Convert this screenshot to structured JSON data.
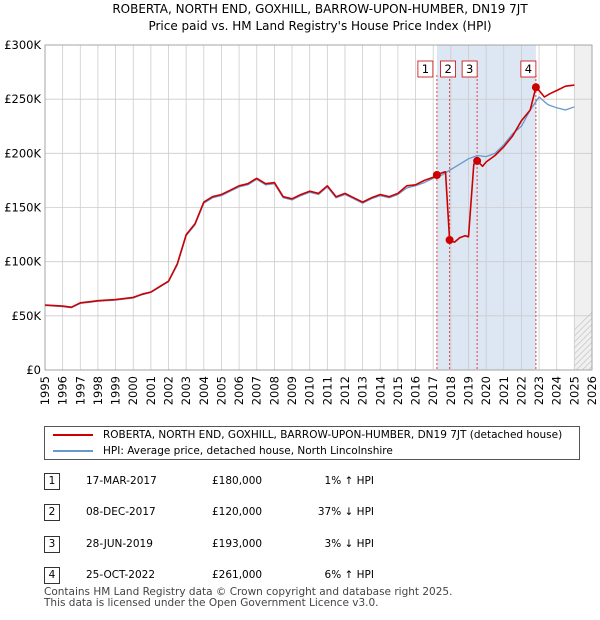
{
  "chart_data": {
    "type": "line",
    "title": "ROBERTA, NORTH END, GOXHILL, BARROW-UPON-HUMBER, DN19 7JT",
    "subtitle": "Price paid vs. HM Land Registry's House Price Index (HPI)",
    "xlim": [
      1995,
      2026
    ],
    "ylim": [
      0,
      300000
    ],
    "x_ticks": [
      1995,
      1996,
      1997,
      1998,
      1999,
      2000,
      2001,
      2002,
      2003,
      2004,
      2005,
      2006,
      2007,
      2008,
      2009,
      2010,
      2011,
      2012,
      2013,
      2014,
      2015,
      2016,
      2017,
      2018,
      2019,
      2020,
      2021,
      2022,
      2023,
      2024,
      2025,
      2026
    ],
    "y_ticks": [
      0,
      50000,
      100000,
      150000,
      200000,
      250000,
      300000
    ],
    "y_tick_labels": [
      "£0",
      "£50K",
      "£100K",
      "£150K",
      "£200K",
      "£250K",
      "£300K"
    ],
    "future_shade_start": 2025.0,
    "sale_band": [
      2017.21,
      2022.82
    ],
    "series": [
      {
        "name": "ROBERTA, NORTH END, GOXHILL, BARROW-UPON-HUMBER, DN19 7JT (detached house)",
        "color": "#cc0000",
        "x": [
          1995.0,
          1996.0,
          1996.5,
          1997.0,
          1997.5,
          1998.0,
          1999.0,
          2000.0,
          2000.5,
          2001.0,
          2001.5,
          2002.0,
          2002.5,
          2003.0,
          2003.5,
          2004.0,
          2004.5,
          2005.0,
          2005.5,
          2006.0,
          2006.5,
          2007.0,
          2007.5,
          2008.0,
          2008.5,
          2009.0,
          2009.5,
          2010.0,
          2010.5,
          2011.0,
          2011.5,
          2012.0,
          2012.5,
          2013.0,
          2013.5,
          2014.0,
          2014.5,
          2015.0,
          2015.5,
          2016.0,
          2016.5,
          2017.0,
          2017.21,
          2017.5,
          2017.7,
          2017.93,
          2018.2,
          2018.5,
          2018.8,
          2019.0,
          2019.3,
          2019.49,
          2019.8,
          2020.0,
          2020.5,
          2021.0,
          2021.5,
          2022.0,
          2022.5,
          2022.82,
          2023.0,
          2023.3,
          2023.6,
          2024.0,
          2024.5,
          2025.0
        ],
        "values": [
          60000,
          59000,
          58000,
          62000,
          63000,
          64000,
          65000,
          67000,
          70000,
          72000,
          77000,
          82000,
          98000,
          125000,
          135000,
          155000,
          160000,
          162000,
          166000,
          170000,
          172000,
          177000,
          172000,
          173000,
          160000,
          158000,
          162000,
          165000,
          163000,
          170000,
          160000,
          163000,
          159000,
          155000,
          159000,
          162000,
          160000,
          163000,
          170000,
          171000,
          175000,
          178000,
          180000,
          182000,
          183000,
          120000,
          118000,
          122000,
          124000,
          123000,
          190000,
          193000,
          188000,
          192000,
          198000,
          206000,
          216000,
          230000,
          240000,
          261000,
          258000,
          252000,
          255000,
          258000,
          262000,
          263000
        ]
      },
      {
        "name": "HPI: Average price, detached house, North Lincolnshire",
        "color": "#6699cc",
        "x": [
          1995.0,
          1996.0,
          1996.5,
          1997.0,
          1997.5,
          1998.0,
          1999.0,
          2000.0,
          2000.5,
          2001.0,
          2001.5,
          2002.0,
          2002.5,
          2003.0,
          2003.5,
          2004.0,
          2004.5,
          2005.0,
          2005.5,
          2006.0,
          2006.5,
          2007.0,
          2007.5,
          2008.0,
          2008.5,
          2009.0,
          2009.5,
          2010.0,
          2010.5,
          2011.0,
          2011.5,
          2012.0,
          2012.5,
          2013.0,
          2013.5,
          2014.0,
          2014.5,
          2015.0,
          2015.5,
          2016.0,
          2016.5,
          2017.0,
          2017.5,
          2018.0,
          2018.5,
          2019.0,
          2019.5,
          2020.0,
          2020.5,
          2021.0,
          2021.5,
          2022.0,
          2022.5,
          2023.0,
          2023.5,
          2024.0,
          2024.5,
          2025.0
        ],
        "values": [
          59500,
          58500,
          57500,
          61500,
          62500,
          63500,
          64500,
          66500,
          69500,
          71500,
          76500,
          81500,
          97000,
          124000,
          134000,
          154000,
          159000,
          161000,
          165000,
          169000,
          171000,
          176000,
          171000,
          172000,
          159000,
          157000,
          161000,
          164000,
          162000,
          169000,
          159000,
          162000,
          158000,
          154000,
          158000,
          161000,
          159000,
          162000,
          168000,
          170000,
          173000,
          177000,
          180000,
          185000,
          190000,
          195000,
          198000,
          197000,
          200000,
          208000,
          218000,
          225000,
          240000,
          252000,
          245000,
          242000,
          240000,
          243000
        ]
      }
    ],
    "markers": [
      {
        "label": "1",
        "x": 2017.21,
        "y": 180000
      },
      {
        "label": "2",
        "x": 2017.93,
        "y": 120000
      },
      {
        "label": "3",
        "x": 2019.49,
        "y": 193000
      },
      {
        "label": "4",
        "x": 2022.82,
        "y": 261000
      }
    ]
  },
  "legend": {
    "items": [
      {
        "label": "ROBERTA, NORTH END, GOXHILL, BARROW-UPON-HUMBER, DN19 7JT (detached house)",
        "color": "#cc0000"
      },
      {
        "label": "HPI: Average price, detached house, North Lincolnshire",
        "color": "#6699cc"
      }
    ]
  },
  "transactions": [
    {
      "num": "1",
      "date": "17-MAR-2017",
      "price": "£180,000",
      "hpi": "1% ↑ HPI"
    },
    {
      "num": "2",
      "date": "08-DEC-2017",
      "price": "£120,000",
      "hpi": "37% ↓ HPI"
    },
    {
      "num": "3",
      "date": "28-JUN-2019",
      "price": "£193,000",
      "hpi": "3% ↓ HPI"
    },
    {
      "num": "4",
      "date": "25-OCT-2022",
      "price": "£261,000",
      "hpi": "6% ↑ HPI"
    }
  ],
  "footer": {
    "line1": "Contains HM Land Registry data © Crown copyright and database right 2025.",
    "line2": "This data is licensed under the Open Government Licence v3.0."
  }
}
